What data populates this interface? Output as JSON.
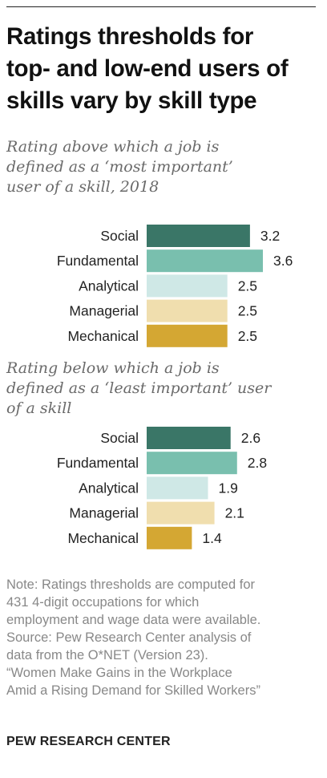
{
  "title_lines": [
    "Ratings thresholds for",
    "top- and low-end users of",
    "skills vary by skill type"
  ],
  "note_lines": [
    "Note: Ratings thresholds are computed for",
    "431 4-digit occupations for which",
    "employment and wage data were available.",
    "Source: Pew Research Center analysis of",
    "data from the O*NET (Version 23).",
    "“Women Make Gains in the Workplace",
    "Amid a Rising Demand for Skilled Workers”"
  ],
  "brand": "PEW RESEARCH CENTER",
  "colors": {
    "Social": "#3a7667",
    "Fundamental": "#79bfae",
    "Analytical": "#cfe8e6",
    "Managerial": "#f0deae",
    "Mechanical": "#d4a733"
  },
  "chart_data": [
    {
      "type": "bar",
      "orientation": "horizontal",
      "title_lines": [
        "Rating above which a job is",
        "defined as a ‘most important’",
        "user of a skill, 2018"
      ],
      "categories": [
        "Social",
        "Fundamental",
        "Analytical",
        "Managerial",
        "Mechanical"
      ],
      "values": [
        3.2,
        3.6,
        2.5,
        2.5,
        2.5
      ],
      "value_labels": [
        "3.2",
        "3.6",
        "2.5",
        "2.5",
        "2.5"
      ],
      "xlim": [
        0,
        3.6
      ],
      "grid": false,
      "legend": "none",
      "data_labels": "outside-end"
    },
    {
      "type": "bar",
      "orientation": "horizontal",
      "title_lines": [
        "Rating below which a job is",
        "defined as a ‘least important’ user",
        "of a skill"
      ],
      "categories": [
        "Social",
        "Fundamental",
        "Analytical",
        "Managerial",
        "Mechanical"
      ],
      "values": [
        2.6,
        2.8,
        1.9,
        2.1,
        1.4
      ],
      "value_labels": [
        "2.6",
        "2.8",
        "1.9",
        "2.1",
        "1.4"
      ],
      "xlim": [
        0,
        3.6
      ],
      "grid": false,
      "legend": "none",
      "data_labels": "outside-end"
    }
  ]
}
